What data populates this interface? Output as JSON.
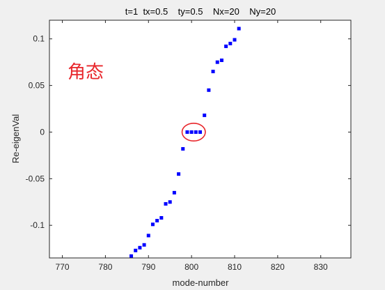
{
  "chart_data": {
    "type": "scatter",
    "title": "t=1  tx=0.5    ty=0.5    Nx=20    Ny=20",
    "xlabel": "mode-number",
    "ylabel": "Re-eigenVal",
    "xlim": [
      767,
      837
    ],
    "ylim": [
      -0.135,
      0.12
    ],
    "xticks": [
      770,
      780,
      790,
      800,
      810,
      820,
      830
    ],
    "yticks": [
      -0.1,
      -0.05,
      0,
      0.05,
      0.1
    ],
    "ytick_labels": [
      "-0.1",
      "-0.05",
      "0",
      "0.05",
      "0.1"
    ],
    "grid": false,
    "series": [
      {
        "marker": "square",
        "color": "#0000ff",
        "x": [
          786,
          787,
          788,
          789,
          790,
          791,
          792,
          793,
          794,
          795,
          796,
          797,
          798,
          799,
          800,
          801,
          802,
          803,
          804,
          805,
          806,
          807,
          808,
          809,
          810,
          811
        ],
        "y": [
          -0.133,
          -0.127,
          -0.124,
          -0.121,
          -0.111,
          -0.099,
          -0.095,
          -0.092,
          -0.077,
          -0.075,
          -0.065,
          -0.045,
          -0.018,
          0.0,
          0.0,
          0.0,
          0.0,
          0.018,
          0.045,
          0.065,
          0.075,
          0.077,
          0.092,
          0.095,
          0.099,
          0.111
        ]
      }
    ],
    "annotations": [
      {
        "text": "角态",
        "color": "#e8262b"
      },
      {
        "type": "ellipse",
        "color": "#e8262b",
        "center_x": 800.5,
        "center_y": 0.0,
        "half_width_x": 2.7,
        "half_height_y": 0.0095
      }
    ]
  }
}
